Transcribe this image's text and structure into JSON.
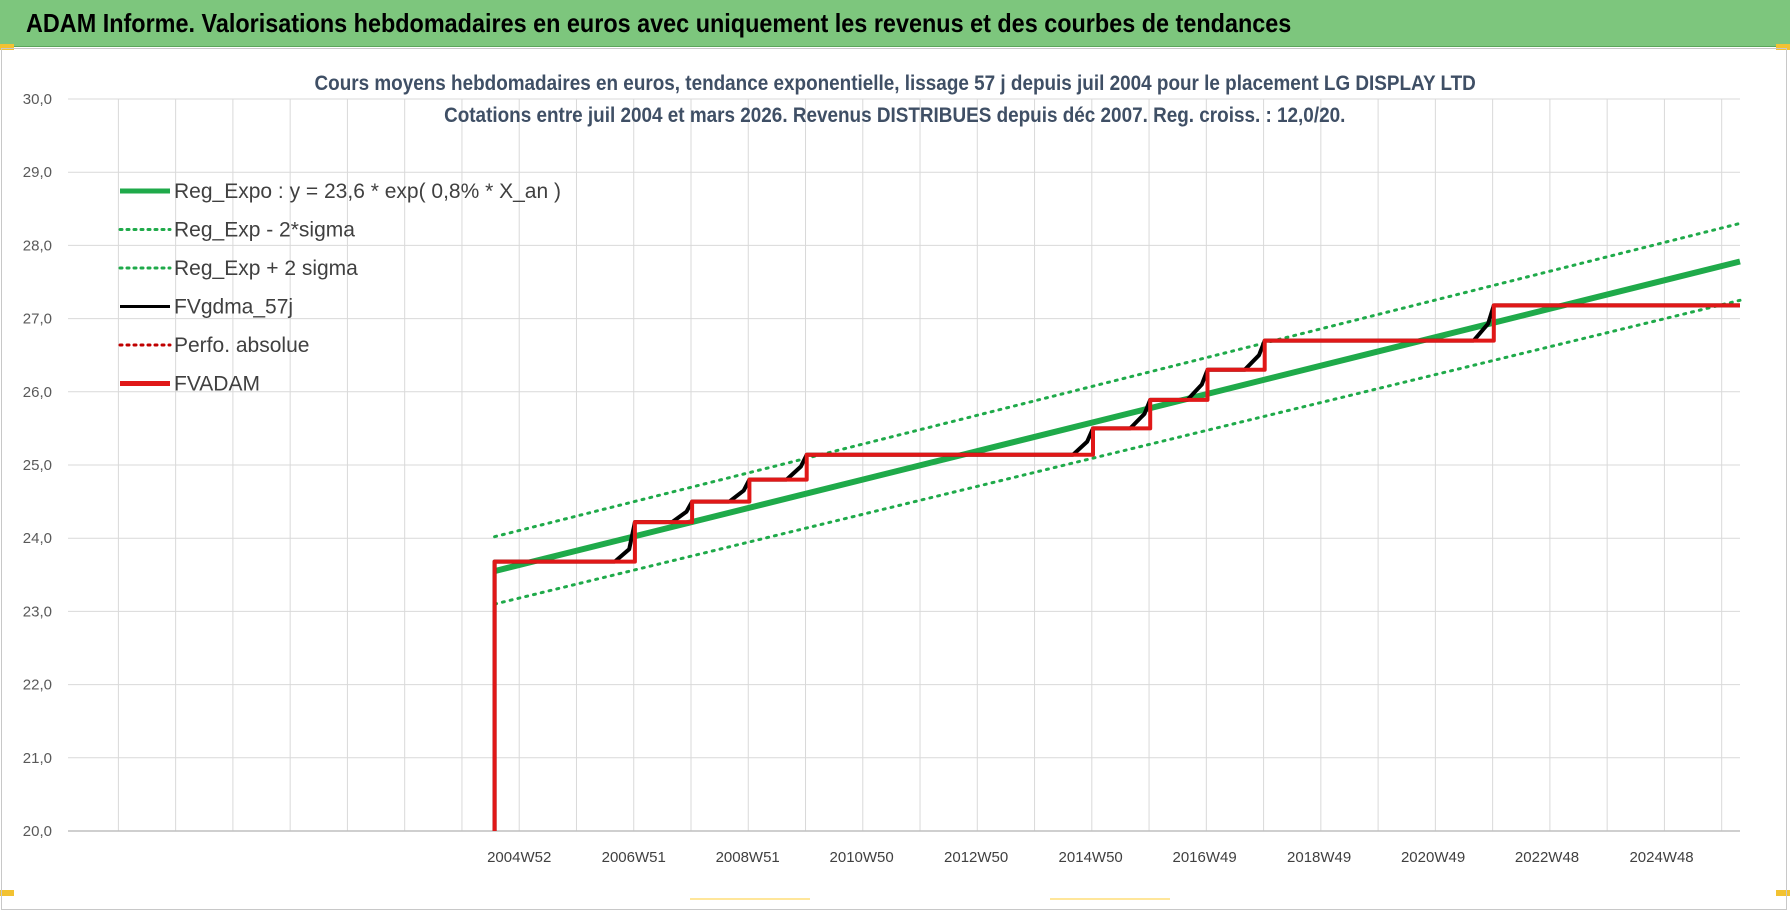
{
  "header": {
    "title": "ADAM Informe. Valorisations hebdomadaires en euros avec uniquement les revenus et des courbes de tendances"
  },
  "colors": {
    "header_bg": "#7dc67d",
    "reg_expo": "#1faa4a",
    "fvgdma": "#000000",
    "fvadam": "#e01818",
    "perfo": "#c00000",
    "grid": "#d9d9d9"
  },
  "chart_data": {
    "type": "line",
    "title": "Cours moyens hebdomadaires en euros, tendance exponentielle, lissage 57 j depuis juil 2004 pour le placement LG DISPLAY LTD",
    "subtitle": "Cotations entre juil 2004 et mars 2026. Revenus DISTRIBUES depuis déc 2007. Reg. croiss. : 12,0/20.",
    "ylim": [
      20.0,
      30.0
    ],
    "xlim": [
      1997.1,
      2026.3
    ],
    "y_ticks": [
      "20,0",
      "21,0",
      "22,0",
      "23,0",
      "24,0",
      "25,0",
      "26,0",
      "27,0",
      "28,0",
      "29,0",
      "30,0"
    ],
    "x_ticks": [
      {
        "label": "2004W52",
        "x": 2004.98
      },
      {
        "label": "2006W51",
        "x": 2006.98
      },
      {
        "label": "2008W51",
        "x": 2008.97
      },
      {
        "label": "2010W50",
        "x": 2010.96
      },
      {
        "label": "2012W50",
        "x": 2012.96
      },
      {
        "label": "2014W50",
        "x": 2014.96
      },
      {
        "label": "2016W49",
        "x": 2016.95
      },
      {
        "label": "2018W49",
        "x": 2018.95
      },
      {
        "label": "2020W49",
        "x": 2020.94
      },
      {
        "label": "2022W48",
        "x": 2022.93
      },
      {
        "label": "2024W48",
        "x": 2024.93
      }
    ],
    "grid": true,
    "legend_position": "top-left",
    "legend": [
      {
        "name": "Reg_Expo : y = 23,6 * exp( 0,8% *  X_an )",
        "style": "solid-thick",
        "color": "#1faa4a"
      },
      {
        "name": "Reg_Exp - 2*sigma",
        "style": "dotted",
        "color": "#1faa4a"
      },
      {
        "name": "Reg_Exp + 2 sigma",
        "style": "dotted",
        "color": "#1faa4a"
      },
      {
        "name": "FVgdma_57j",
        "style": "solid",
        "color": "#000000"
      },
      {
        "name": "Perfo. absolue",
        "style": "dotted",
        "color": "#c00000"
      },
      {
        "name": "FVADAM",
        "style": "solid-thick",
        "color": "#e01818"
      }
    ],
    "series": [
      {
        "name": "Reg_Expo : y = 23,6 * exp( 0,8% *  X_an )",
        "color": "#1faa4a",
        "dash": "",
        "width": 6,
        "x": [
          2004.55,
          2026.3
        ],
        "y": [
          23.55,
          27.78
        ]
      },
      {
        "name": "Reg_Exp - 2*sigma",
        "color": "#1faa4a",
        "dash": "2,6",
        "width": 3,
        "x": [
          2004.55,
          2026.3
        ],
        "y": [
          23.1,
          27.25
        ]
      },
      {
        "name": "Reg_Exp + 2 sigma",
        "color": "#1faa4a",
        "dash": "2,6",
        "width": 3,
        "x": [
          2004.55,
          2026.3
        ],
        "y": [
          24.02,
          28.3
        ]
      },
      {
        "name": "FVgdma_57j",
        "color": "#000000",
        "dash": "",
        "width": 4,
        "x": [
          2004.55,
          2004.55,
          2006.65,
          2006.9,
          2007.0,
          2007.65,
          2007.9,
          2008.0,
          2008.65,
          2008.9,
          2009.0,
          2009.65,
          2009.9,
          2010.0,
          2014.65,
          2014.9,
          2015.0,
          2015.65,
          2015.9,
          2016.0,
          2016.65,
          2016.9,
          2017.0,
          2017.65,
          2017.9,
          2018.0,
          2021.65,
          2021.9,
          2022.0,
          2026.3
        ],
        "y": [
          20.0,
          23.68,
          23.68,
          23.85,
          24.22,
          24.22,
          24.36,
          24.5,
          24.5,
          24.65,
          24.8,
          24.8,
          24.98,
          25.14,
          25.14,
          25.32,
          25.5,
          25.5,
          25.7,
          25.89,
          25.89,
          26.1,
          26.3,
          26.3,
          26.5,
          26.7,
          26.7,
          26.93,
          27.18,
          27.18
        ]
      },
      {
        "name": "Perfo. absolue",
        "color": "#c00000",
        "dash": "2,3",
        "width": 2,
        "x": [],
        "y": []
      },
      {
        "name": "FVADAM",
        "color": "#e01818",
        "dash": "",
        "width": 4,
        "x": [
          2004.55,
          2004.55,
          2007.0,
          2007.0,
          2008.0,
          2008.0,
          2009.0,
          2009.0,
          2010.0,
          2010.0,
          2015.0,
          2015.0,
          2016.0,
          2016.0,
          2017.0,
          2017.0,
          2018.0,
          2018.0,
          2022.0,
          2022.0,
          2026.3
        ],
        "y": [
          20.0,
          23.68,
          23.68,
          24.22,
          24.22,
          24.5,
          24.5,
          24.8,
          24.8,
          25.14,
          25.14,
          25.5,
          25.5,
          25.89,
          25.89,
          26.3,
          26.3,
          26.7,
          26.7,
          27.18,
          27.18
        ]
      }
    ]
  }
}
